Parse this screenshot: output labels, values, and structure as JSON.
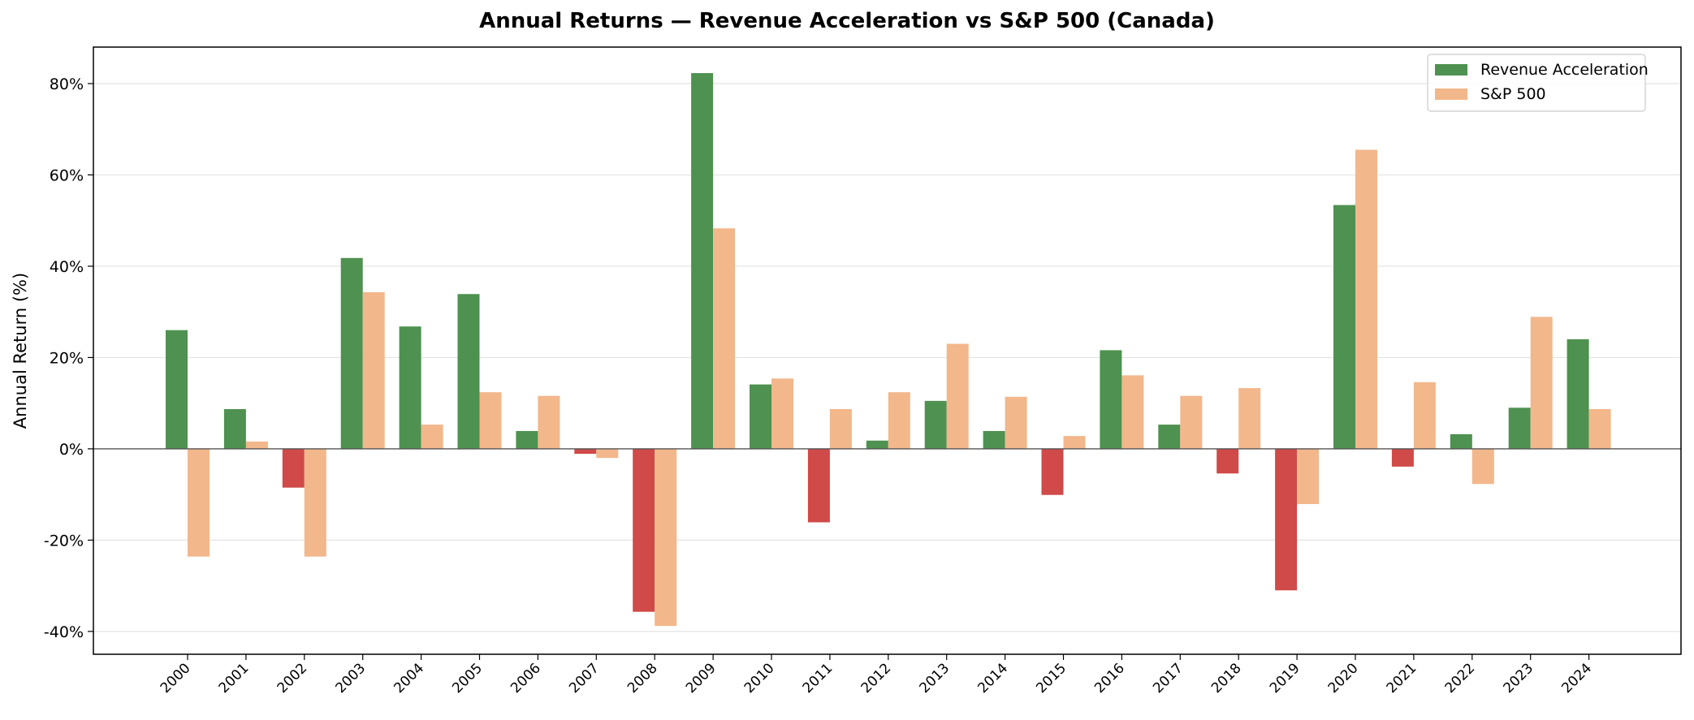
{
  "chart_data": {
    "type": "bar",
    "title": "Annual Returns — Revenue Acceleration vs S&P 500 (Canada)",
    "xlabel": "",
    "ylabel": "Annual Return (%)",
    "ylim": [
      -45,
      88
    ],
    "yticks": [
      -40,
      -20,
      0,
      20,
      40,
      60,
      80
    ],
    "ytick_labels": [
      "-40%",
      "-20%",
      "0%",
      "20%",
      "40%",
      "60%",
      "80%"
    ],
    "grid": "horizontal",
    "legend_position": "top-right",
    "categories": [
      "2000",
      "2001",
      "2002",
      "2003",
      "2004",
      "2005",
      "2006",
      "2007",
      "2008",
      "2009",
      "2010",
      "2011",
      "2012",
      "2013",
      "2014",
      "2015",
      "2016",
      "2017",
      "2018",
      "2019",
      "2020",
      "2021",
      "2022",
      "2023",
      "2024"
    ],
    "series": [
      {
        "name": "Revenue Acceleration",
        "color": "#4e9150",
        "negative_color": "#cf4a48",
        "values": [
          26.0,
          8.7,
          -8.5,
          41.8,
          26.8,
          33.9,
          3.9,
          -1.1,
          -35.7,
          82.3,
          14.1,
          -16.1,
          1.8,
          10.5,
          3.9,
          -10.1,
          21.6,
          5.3,
          -5.4,
          -31.0,
          53.4,
          -3.9,
          3.2,
          9.0,
          24.0
        ]
      },
      {
        "name": "S&P 500",
        "color": "#f2b78b",
        "values": [
          -23.6,
          1.6,
          -23.6,
          34.3,
          5.3,
          12.4,
          11.6,
          -2.0,
          -38.8,
          48.3,
          15.4,
          8.7,
          12.4,
          23.0,
          11.4,
          2.8,
          16.1,
          11.6,
          13.3,
          -12.1,
          65.5,
          14.6,
          -7.7,
          28.9,
          8.7
        ]
      }
    ]
  }
}
